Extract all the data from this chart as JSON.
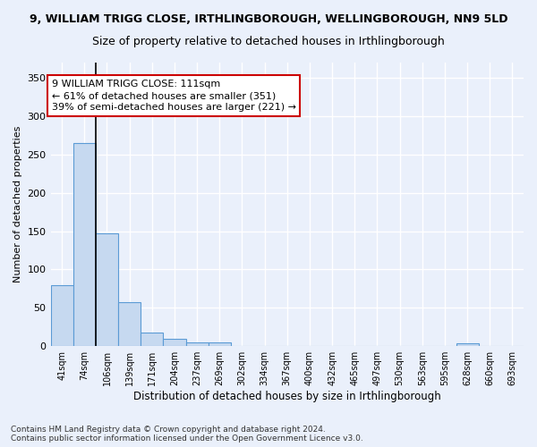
{
  "title_line1": "9, WILLIAM TRIGG CLOSE, IRTHLINGBOROUGH, WELLINGBOROUGH, NN9 5LD",
  "title_line2": "Size of property relative to detached houses in Irthlingborough",
  "xlabel": "Distribution of detached houses by size in Irthlingborough",
  "ylabel": "Number of detached properties",
  "bar_color": "#c6d9f0",
  "bar_edge_color": "#5b9bd5",
  "vline_color": "#000000",
  "vline_x": 1.5,
  "annotation_text": "9 WILLIAM TRIGG CLOSE: 111sqm\n← 61% of detached houses are smaller (351)\n39% of semi-detached houses are larger (221) →",
  "annotation_box_color": "#ffffff",
  "annotation_box_edge": "#cc0000",
  "categories": [
    "41sqm",
    "74sqm",
    "106sqm",
    "139sqm",
    "171sqm",
    "204sqm",
    "237sqm",
    "269sqm",
    "302sqm",
    "334sqm",
    "367sqm",
    "400sqm",
    "432sqm",
    "465sqm",
    "497sqm",
    "530sqm",
    "563sqm",
    "595sqm",
    "628sqm",
    "660sqm",
    "693sqm"
  ],
  "values": [
    79,
    265,
    147,
    57,
    18,
    10,
    5,
    5,
    0,
    0,
    0,
    0,
    0,
    0,
    0,
    0,
    0,
    0,
    4,
    0,
    0
  ],
  "ylim": [
    0,
    370
  ],
  "yticks": [
    0,
    50,
    100,
    150,
    200,
    250,
    300,
    350
  ],
  "background_color": "#eaf0fb",
  "grid_color": "#ffffff",
  "footnote": "Contains HM Land Registry data © Crown copyright and database right 2024.\nContains public sector information licensed under the Open Government Licence v3.0."
}
